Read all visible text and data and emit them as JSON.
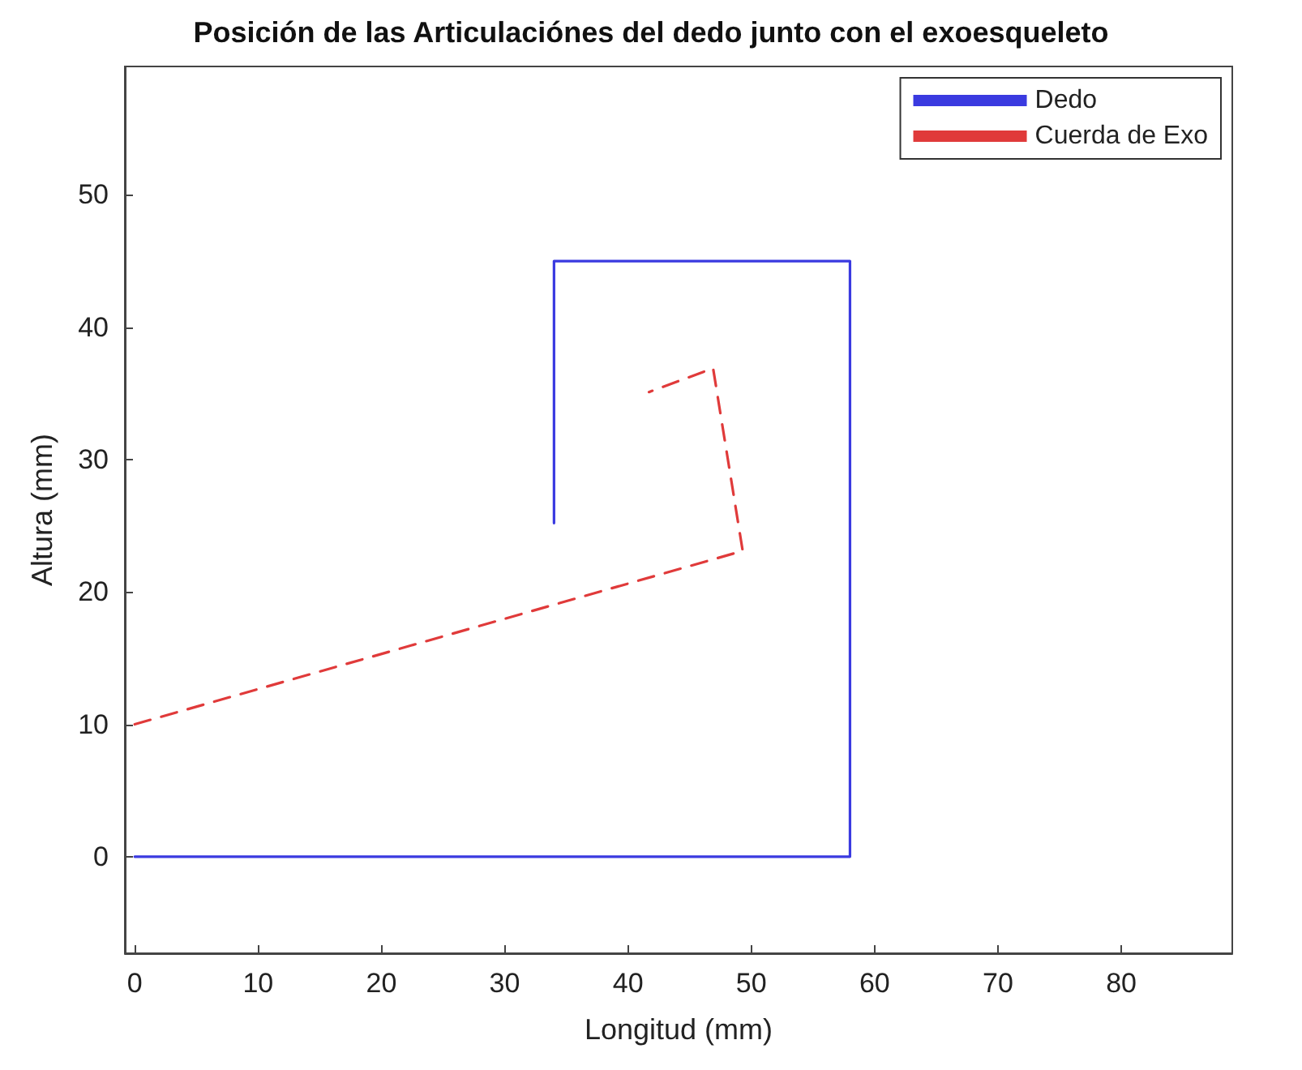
{
  "chart_data": {
    "type": "line",
    "title": "Posición de las Articulaciónes del dedo junto con el exoesqueleto",
    "xlabel": "Longitud (mm)",
    "ylabel": "Altura (mm)",
    "series": [
      {
        "name": "Dedo",
        "color": "#3a3ae0",
        "line_style": "solid",
        "x": [
          0,
          58,
          58,
          34,
          34
        ],
        "values": [
          0,
          0,
          45,
          45,
          25.2
        ]
      },
      {
        "name": "Cuerda de Exo",
        "color": "#e03a3a",
        "line_style": "dashed",
        "x": [
          0,
          49.3,
          46.9,
          41.7
        ],
        "values": [
          10,
          23.1,
          36.9,
          35.1
        ]
      }
    ],
    "xlim": [
      -0.8,
      89
    ],
    "xticks": [
      0,
      10,
      20,
      30,
      40,
      50,
      60,
      70,
      80
    ],
    "ylim": [
      -7.3,
      59.7
    ],
    "yticks": [
      0,
      10,
      20,
      30,
      40,
      50
    ],
    "grid": false,
    "legend": "top right",
    "marker": "none"
  }
}
